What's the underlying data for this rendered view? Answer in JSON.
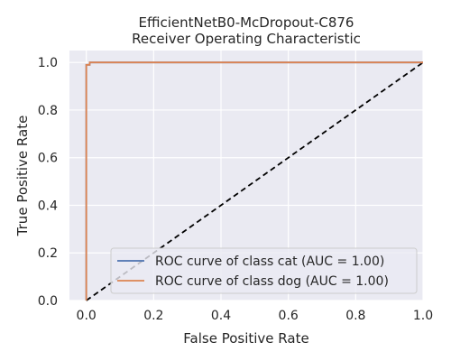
{
  "chart_data": {
    "type": "line",
    "title": [
      "EfficientNetB0-McDropout-C876",
      "Receiver Operating Characteristic"
    ],
    "xlabel": "False Positive Rate",
    "ylabel": "True Positive Rate",
    "xlim": [
      -0.05,
      1.0
    ],
    "ylim": [
      0.0,
      1.05
    ],
    "xticks": [
      0.0,
      0.2,
      0.4,
      0.6,
      0.8,
      1.0
    ],
    "xtick_labels": [
      "0.0",
      "0.2",
      "0.4",
      "0.6",
      "0.8",
      "1.0"
    ],
    "yticks": [
      0.0,
      0.2,
      0.4,
      0.6,
      0.8,
      1.0
    ],
    "ytick_labels": [
      "0.0",
      "0.2",
      "0.4",
      "0.6",
      "0.8",
      "1.0"
    ],
    "grid": true,
    "legend_position": "lower-right",
    "series": [
      {
        "name": "ROC curve of class cat (AUC = 1.00)",
        "color": "#4C72B0",
        "x": [
          0.0,
          0.0,
          0.0,
          0.01,
          0.01,
          1.0
        ],
        "y": [
          0.0,
          0.99,
          0.99,
          0.99,
          1.0,
          1.0
        ]
      },
      {
        "name": "ROC curve of class dog (AUC = 1.00)",
        "color": "#DD8452",
        "x": [
          0.0,
          0.0,
          0.0,
          0.01,
          0.01,
          1.0
        ],
        "y": [
          0.0,
          0.99,
          0.99,
          0.99,
          1.0,
          1.0
        ]
      }
    ],
    "reference_line": {
      "name": "chance",
      "color": "#000000",
      "style": "dashed",
      "x": [
        0.0,
        1.0
      ],
      "y": [
        0.0,
        1.0
      ]
    }
  }
}
